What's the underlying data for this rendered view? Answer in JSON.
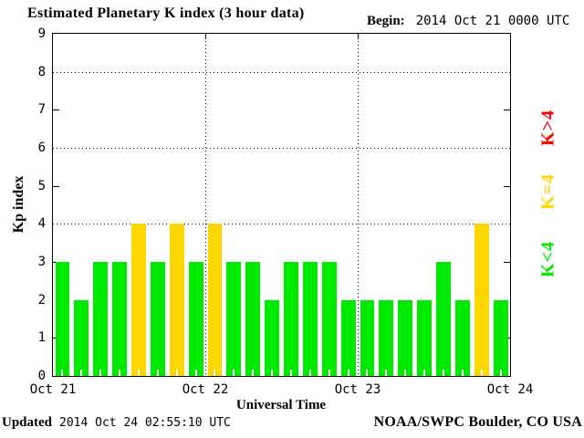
{
  "header": {
    "title": "Estimated Planetary K index (3 hour data)",
    "begin_label": "Begin:",
    "begin_value": "2014 Oct 21 0000 UTC"
  },
  "footer": {
    "updated_label": "Updated",
    "updated_value": "2014 Oct 24 02:55:10 UTC",
    "source": "NOAA/SWPC Boulder, CO USA"
  },
  "chart_data": {
    "type": "bar",
    "title": "Estimated Planetary K index (3 hour data)",
    "xlabel": "Universal Time",
    "ylabel": "Kp index",
    "ylim": [
      0,
      9
    ],
    "yticks": [
      0,
      1,
      2,
      3,
      4,
      5,
      6,
      7,
      8,
      9
    ],
    "gridlines_y": [
      4,
      6,
      8
    ],
    "grid_style": "dotted",
    "x_day_labels": [
      "Oct 21",
      "Oct 22",
      "Oct 23",
      "Oct 24"
    ],
    "hours_per_bar": 3,
    "bars_per_day": 8,
    "values": [
      3,
      2,
      3,
      3,
      4,
      3,
      4,
      3,
      4,
      3,
      3,
      2,
      3,
      3,
      3,
      2,
      2,
      2,
      2,
      2,
      3,
      2,
      4,
      2
    ],
    "colors": {
      "low": "#00EA00",
      "mid": "#FFD700",
      "high": "#FF0000"
    },
    "color_rule": "green for K<4, yellow for K=4, red for K>4",
    "legend_position": "right",
    "legend": [
      {
        "label": "K>4",
        "color": "#FF0000"
      },
      {
        "label": "K=4",
        "color": "#FFD700"
      },
      {
        "label": "K<4",
        "color": "#00EA00"
      }
    ]
  }
}
